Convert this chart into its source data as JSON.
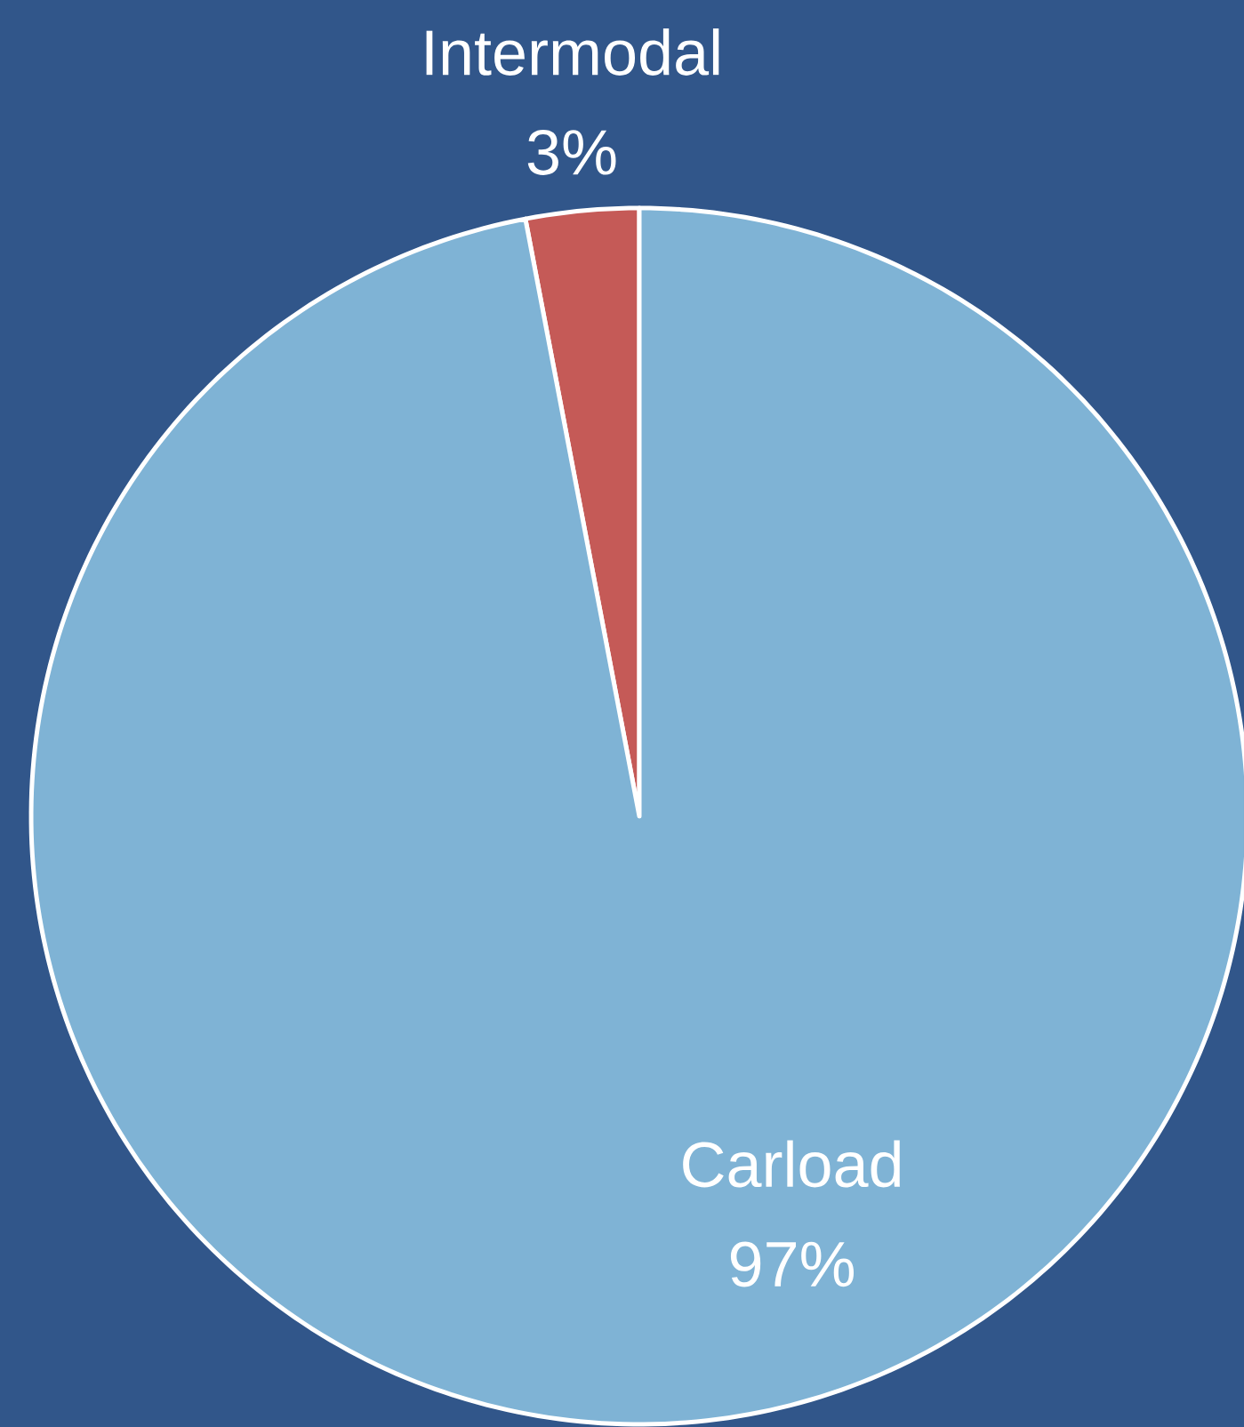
{
  "chart_data": {
    "type": "pie",
    "categories": [
      "Intermodal",
      "Carload"
    ],
    "values": [
      3,
      97
    ],
    "colors": [
      "#c55a57",
      "#7fb3d5"
    ],
    "value_labels": [
      "3%",
      "97%"
    ]
  }
}
